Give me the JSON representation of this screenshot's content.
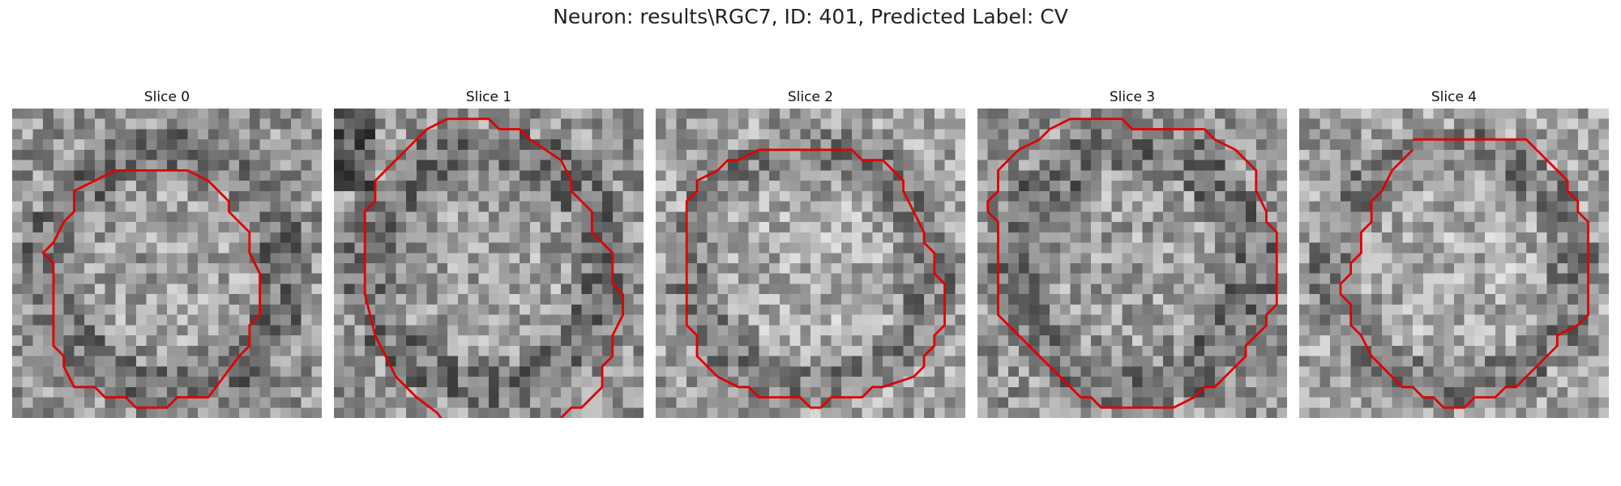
{
  "figure": {
    "title": "Neuron: results\\RGC7, ID: 401, Predicted Label: CV"
  },
  "panels": [
    {
      "title": "Slice 0",
      "seed": 11,
      "contrast": "mid"
    },
    {
      "title": "Slice 1",
      "seed": 23,
      "contrast": "dark-edges"
    },
    {
      "title": "Slice 2",
      "seed": 37,
      "contrast": "light"
    },
    {
      "title": "Slice 3",
      "seed": 53,
      "contrast": "mid"
    },
    {
      "title": "Slice 4",
      "seed": 71,
      "contrast": "light"
    }
  ],
  "style": {
    "contour_color": "#e00000"
  }
}
